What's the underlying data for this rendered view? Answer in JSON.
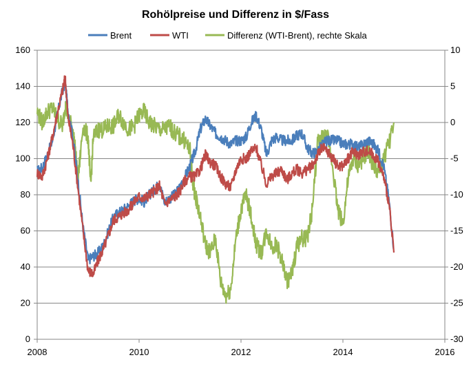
{
  "chart_data": {
    "type": "line",
    "title": "Rohölpreise und Differenz in $/Fass",
    "xlabel": "",
    "ylabel": "",
    "xlim": [
      2008,
      2016
    ],
    "ylim": [
      0,
      160
    ],
    "y2lim": [
      -30,
      10
    ],
    "x_ticks": [
      "2008",
      "2010",
      "2012",
      "2014",
      "2016"
    ],
    "x_tick_values": [
      2008,
      2010,
      2012,
      2014,
      2016
    ],
    "y_ticks": [
      "0",
      "20",
      "40",
      "60",
      "80",
      "100",
      "120",
      "140",
      "160"
    ],
    "y_tick_values": [
      0,
      20,
      40,
      60,
      80,
      100,
      120,
      140,
      160
    ],
    "y2_ticks": [
      "-30",
      "-25",
      "-20",
      "-15",
      "-10",
      "-5",
      "0",
      "5",
      "10"
    ],
    "y2_tick_values": [
      -30,
      -25,
      -20,
      -15,
      -10,
      -5,
      0,
      5,
      10
    ],
    "grid": "horizontal",
    "legend_position": "top",
    "series": [
      {
        "name": "Brent",
        "color": "#4a7ebb",
        "axis": "left",
        "x": [
          2008.0,
          2008.1,
          2008.2,
          2008.3,
          2008.4,
          2008.5,
          2008.55,
          2008.6,
          2008.7,
          2008.8,
          2008.9,
          2009.0,
          2009.1,
          2009.2,
          2009.3,
          2009.4,
          2009.5,
          2009.6,
          2009.7,
          2009.8,
          2009.9,
          2010.0,
          2010.1,
          2010.2,
          2010.3,
          2010.4,
          2010.5,
          2010.6,
          2010.7,
          2010.8,
          2010.9,
          2011.0,
          2011.1,
          2011.2,
          2011.3,
          2011.4,
          2011.5,
          2011.6,
          2011.7,
          2011.8,
          2011.9,
          2012.0,
          2012.1,
          2012.2,
          2012.3,
          2012.4,
          2012.5,
          2012.6,
          2012.7,
          2012.8,
          2012.9,
          2013.0,
          2013.1,
          2013.2,
          2013.3,
          2013.4,
          2013.5,
          2013.6,
          2013.7,
          2013.8,
          2013.9,
          2014.0,
          2014.1,
          2014.2,
          2014.3,
          2014.4,
          2014.5,
          2014.6,
          2014.7,
          2014.8,
          2014.9,
          2015.0
        ],
        "values": [
          93,
          95,
          102,
          110,
          125,
          138,
          142,
          128,
          112,
          88,
          62,
          44,
          46,
          48,
          52,
          60,
          68,
          70,
          72,
          74,
          77,
          78,
          76,
          80,
          83,
          86,
          76,
          78,
          80,
          84,
          90,
          96,
          104,
          116,
          122,
          118,
          114,
          112,
          110,
          108,
          110,
          110,
          112,
          120,
          124,
          116,
          102,
          110,
          112,
          110,
          110,
          110,
          113,
          114,
          106,
          103,
          104,
          108,
          110,
          110,
          110,
          108,
          108,
          108,
          106,
          108,
          110,
          108,
          104,
          96,
          78,
          50
        ]
      },
      {
        "name": "WTI",
        "color": "#be4b48",
        "axis": "left",
        "x": [
          2008.0,
          2008.1,
          2008.2,
          2008.3,
          2008.4,
          2008.5,
          2008.55,
          2008.6,
          2008.7,
          2008.8,
          2008.9,
          2009.0,
          2009.1,
          2009.2,
          2009.3,
          2009.4,
          2009.5,
          2009.6,
          2009.7,
          2009.8,
          2009.9,
          2010.0,
          2010.1,
          2010.2,
          2010.3,
          2010.4,
          2010.5,
          2010.6,
          2010.7,
          2010.8,
          2010.9,
          2011.0,
          2011.1,
          2011.2,
          2011.3,
          2011.4,
          2011.5,
          2011.6,
          2011.7,
          2011.8,
          2011.9,
          2012.0,
          2012.1,
          2012.2,
          2012.3,
          2012.4,
          2012.5,
          2012.6,
          2012.7,
          2012.8,
          2012.9,
          2013.0,
          2013.1,
          2013.2,
          2013.3,
          2013.4,
          2013.5,
          2013.6,
          2013.7,
          2013.8,
          2013.9,
          2014.0,
          2014.1,
          2014.2,
          2014.3,
          2014.4,
          2014.5,
          2014.6,
          2014.7,
          2014.8,
          2014.9,
          2015.0
        ],
        "values": [
          92,
          90,
          100,
          112,
          126,
          138,
          145,
          124,
          108,
          84,
          60,
          38,
          36,
          44,
          50,
          58,
          66,
          68,
          70,
          72,
          76,
          79,
          78,
          80,
          82,
          85,
          75,
          77,
          79,
          82,
          88,
          90,
          90,
          94,
          102,
          98,
          96,
          90,
          86,
          84,
          94,
          100,
          100,
          104,
          106,
          96,
          86,
          90,
          92,
          94,
          88,
          92,
          94,
          92,
          94,
          96,
          102,
          106,
          104,
          100,
          96,
          96,
          100,
          104,
          102,
          104,
          104,
          102,
          98,
          90,
          76,
          48
        ]
      },
      {
        "name": "Differenz (WTI-Brent), rechte Skala",
        "color": "#98b954",
        "axis": "right",
        "x": [
          2008.0,
          2008.1,
          2008.2,
          2008.3,
          2008.4,
          2008.5,
          2008.55,
          2008.6,
          2008.7,
          2008.75,
          2008.8,
          2008.9,
          2009.0,
          2009.05,
          2009.1,
          2009.2,
          2009.3,
          2009.4,
          2009.5,
          2009.6,
          2009.7,
          2009.8,
          2009.9,
          2010.0,
          2010.1,
          2010.2,
          2010.3,
          2010.4,
          2010.5,
          2010.6,
          2010.7,
          2010.8,
          2010.9,
          2011.0,
          2011.05,
          2011.1,
          2011.2,
          2011.3,
          2011.4,
          2011.5,
          2011.6,
          2011.7,
          2011.8,
          2011.9,
          2012.0,
          2012.1,
          2012.2,
          2012.3,
          2012.4,
          2012.5,
          2012.6,
          2012.7,
          2012.8,
          2012.9,
          2013.0,
          2013.1,
          2013.2,
          2013.3,
          2013.4,
          2013.5,
          2013.6,
          2013.7,
          2013.8,
          2013.9,
          2014.0,
          2014.1,
          2014.2,
          2014.3,
          2014.4,
          2014.5,
          2014.6,
          2014.7,
          2014.8,
          2014.9,
          2015.0
        ],
        "values": [
          1.5,
          0,
          1.5,
          2,
          0.5,
          -0.5,
          2.5,
          1,
          -1,
          -4,
          -8,
          -0.5,
          -2,
          -9,
          -2,
          -1,
          -1,
          -0.5,
          -0.5,
          1,
          0,
          -1,
          -0.5,
          1,
          1.5,
          0,
          -0.5,
          -1,
          -1,
          -0.5,
          -1.5,
          -2,
          -2.5,
          -4,
          -8,
          -10,
          -13,
          -17,
          -18,
          -16,
          -22,
          -24,
          -23,
          -16,
          -12,
          -10,
          -13,
          -17,
          -18,
          -15,
          -17,
          -17,
          -19,
          -22,
          -21,
          -17,
          -16,
          -16,
          -12,
          -3,
          -2,
          -2,
          -6,
          -12,
          -14,
          -8,
          -5,
          -6,
          -5,
          -4,
          -6,
          -7,
          -5,
          -3,
          0
        ]
      }
    ]
  }
}
